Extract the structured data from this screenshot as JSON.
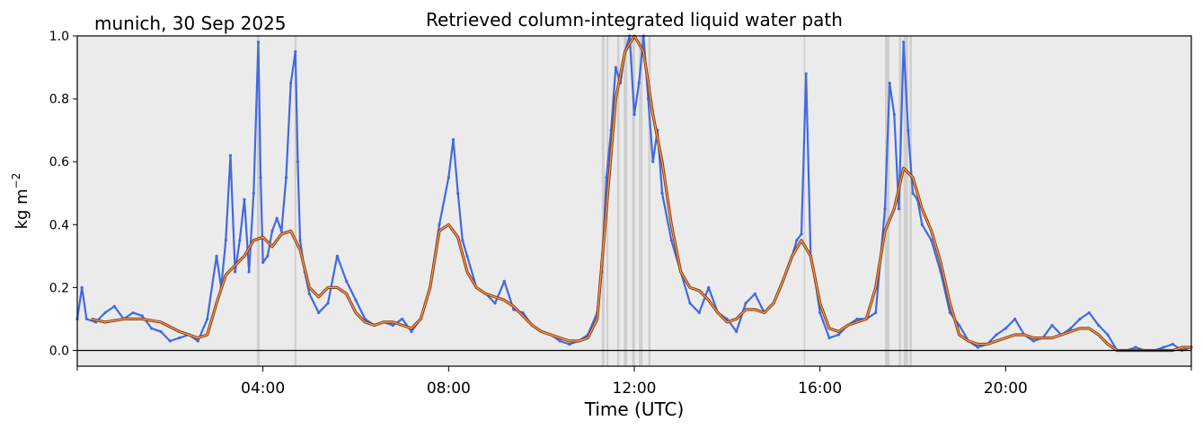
{
  "chart_data": {
    "type": "line",
    "title": "Retrieved column-integrated liquid water path",
    "subtitle": "munich, 30 Sep 2025",
    "xlabel": "Time (UTC)",
    "ylabel": "kg m",
    "ylabel_exponent": "−2",
    "xlim": [
      0,
      24
    ],
    "ylim": [
      -0.05,
      1.0
    ],
    "xticks": [
      4,
      8,
      12,
      16,
      20
    ],
    "xtick_labels": [
      "04:00",
      "08:00",
      "12:00",
      "16:00",
      "20:00"
    ],
    "yticks": [
      0.0,
      0.2,
      0.4,
      0.6,
      0.8,
      1.0
    ],
    "ytick_labels": [
      "0.0",
      "0.2",
      "0.4",
      "0.6",
      "0.8",
      "1.0"
    ],
    "grid": false,
    "colors": {
      "background": "#ebebeb",
      "raw": "#4169e1",
      "smoothed_outer": "#8b3a0f",
      "smoothed_inner": "#f4a460",
      "flag": "#c8c8c8",
      "zero_line": "#000000"
    },
    "flag_intervals": [
      [
        3.87,
        3.93
      ],
      [
        4.68,
        4.72
      ],
      [
        11.3,
        11.36
      ],
      [
        11.4,
        11.44
      ],
      [
        11.63,
        11.68
      ],
      [
        11.77,
        11.85
      ],
      [
        11.95,
        12.02
      ],
      [
        12.1,
        12.18
      ],
      [
        12.3,
        12.35
      ],
      [
        15.65,
        15.68
      ],
      [
        17.4,
        17.5
      ],
      [
        17.7,
        17.75
      ],
      [
        17.8,
        17.9
      ],
      [
        17.93,
        17.98
      ]
    ],
    "series": [
      {
        "kind": "raw",
        "x": [
          0.0,
          0.1,
          0.2,
          0.4,
          0.6,
          0.8,
          1.0,
          1.2,
          1.4,
          1.6,
          1.8,
          2.0,
          2.2,
          2.4,
          2.6,
          2.8,
          3.0,
          3.1,
          3.2,
          3.3,
          3.4,
          3.5,
          3.6,
          3.7,
          3.8,
          3.9,
          3.95,
          4.0,
          4.1,
          4.2,
          4.3,
          4.4,
          4.5,
          4.6,
          4.7,
          4.75,
          4.8,
          4.9,
          5.0,
          5.2,
          5.4,
          5.6,
          5.8,
          6.0,
          6.2,
          6.4,
          6.6,
          6.8,
          7.0,
          7.2,
          7.4,
          7.6,
          7.8,
          8.0,
          8.1,
          8.2,
          8.3,
          8.4,
          8.6,
          8.8,
          9.0,
          9.2,
          9.4,
          9.6,
          9.8,
          10.0,
          10.2,
          10.4,
          10.6,
          10.8,
          11.0,
          11.2,
          11.3,
          11.4,
          11.5,
          11.6,
          11.7,
          11.8,
          11.9,
          12.0,
          12.1,
          12.2,
          12.3,
          12.4,
          12.5,
          12.6,
          12.8,
          13.0,
          13.2,
          13.4,
          13.6,
          13.8,
          14.0,
          14.2,
          14.4,
          14.6,
          14.8,
          15.0,
          15.2,
          15.4,
          15.5,
          15.6,
          15.7,
          15.8,
          15.9,
          16.0,
          16.2,
          16.4,
          16.6,
          16.8,
          17.0,
          17.2,
          17.4,
          17.5,
          17.6,
          17.7,
          17.8,
          17.9,
          18.0,
          18.1,
          18.2,
          18.4,
          18.6,
          18.8,
          19.0,
          19.2,
          19.4,
          19.6,
          19.8,
          20.0,
          20.2,
          20.4,
          20.6,
          20.8,
          21.0,
          21.2,
          21.4,
          21.6,
          21.8,
          22.0,
          22.2,
          22.4,
          22.6,
          22.8,
          23.0,
          23.2,
          23.4,
          23.6,
          23.8,
          24.0
        ],
        "values": [
          0.1,
          0.2,
          0.1,
          0.09,
          0.12,
          0.14,
          0.1,
          0.12,
          0.11,
          0.07,
          0.06,
          0.03,
          0.04,
          0.05,
          0.03,
          0.1,
          0.3,
          0.2,
          0.35,
          0.62,
          0.25,
          0.35,
          0.48,
          0.25,
          0.5,
          0.98,
          0.55,
          0.28,
          0.3,
          0.38,
          0.42,
          0.38,
          0.55,
          0.85,
          0.95,
          0.6,
          0.35,
          0.25,
          0.18,
          0.12,
          0.15,
          0.3,
          0.22,
          0.16,
          0.1,
          0.08,
          0.09,
          0.08,
          0.1,
          0.06,
          0.1,
          0.2,
          0.4,
          0.55,
          0.67,
          0.5,
          0.35,
          0.3,
          0.2,
          0.18,
          0.15,
          0.22,
          0.13,
          0.12,
          0.08,
          0.06,
          0.05,
          0.03,
          0.02,
          0.03,
          0.05,
          0.12,
          0.25,
          0.55,
          0.7,
          0.9,
          0.85,
          0.95,
          1.0,
          0.75,
          0.85,
          1.0,
          0.8,
          0.6,
          0.7,
          0.5,
          0.35,
          0.25,
          0.15,
          0.12,
          0.2,
          0.12,
          0.1,
          0.06,
          0.15,
          0.18,
          0.12,
          0.15,
          0.22,
          0.3,
          0.35,
          0.37,
          0.88,
          0.3,
          0.22,
          0.12,
          0.04,
          0.05,
          0.08,
          0.1,
          0.1,
          0.12,
          0.45,
          0.85,
          0.75,
          0.45,
          0.98,
          0.7,
          0.5,
          0.48,
          0.4,
          0.35,
          0.25,
          0.12,
          0.08,
          0.03,
          0.01,
          0.02,
          0.05,
          0.07,
          0.1,
          0.05,
          0.03,
          0.04,
          0.08,
          0.05,
          0.07,
          0.1,
          0.12,
          0.08,
          0.05,
          0.0,
          0.0,
          0.01,
          0.0,
          0.0,
          0.01,
          0.02,
          0.0,
          0.01
        ]
      },
      {
        "kind": "smoothed",
        "x": [
          0.3,
          0.6,
          1.0,
          1.4,
          1.8,
          2.2,
          2.6,
          2.8,
          3.0,
          3.2,
          3.4,
          3.6,
          3.8,
          4.0,
          4.2,
          4.4,
          4.6,
          4.8,
          5.0,
          5.2,
          5.4,
          5.6,
          5.8,
          6.0,
          6.2,
          6.4,
          6.6,
          6.8,
          7.0,
          7.2,
          7.4,
          7.6,
          7.8,
          8.0,
          8.2,
          8.4,
          8.6,
          8.8,
          9.0,
          9.2,
          9.4,
          9.6,
          9.8,
          10.0,
          10.2,
          10.4,
          10.6,
          10.8,
          11.0,
          11.2,
          11.4,
          11.6,
          11.8,
          12.0,
          12.2,
          12.4,
          12.6,
          12.8,
          13.0,
          13.2,
          13.4,
          13.6,
          13.8,
          14.0,
          14.2,
          14.4,
          14.6,
          14.8,
          15.0,
          15.2,
          15.4,
          15.6,
          15.8,
          16.0,
          16.2,
          16.4,
          16.6,
          16.8,
          17.0,
          17.2,
          17.4,
          17.6,
          17.8,
          18.0,
          18.2,
          18.4,
          18.6,
          18.8,
          19.0,
          19.2,
          19.4,
          19.6,
          19.8,
          20.0,
          20.2,
          20.4,
          20.6,
          20.8,
          21.0,
          21.2,
          21.4,
          21.6,
          21.8,
          22.0,
          22.2,
          22.4,
          22.6,
          22.8,
          23.0,
          23.2,
          23.4,
          23.6,
          23.8,
          24.0
        ],
        "values": [
          0.1,
          0.09,
          0.1,
          0.1,
          0.09,
          0.06,
          0.04,
          0.05,
          0.15,
          0.24,
          0.27,
          0.3,
          0.35,
          0.36,
          0.33,
          0.37,
          0.38,
          0.32,
          0.2,
          0.17,
          0.2,
          0.2,
          0.18,
          0.12,
          0.09,
          0.08,
          0.09,
          0.09,
          0.08,
          0.07,
          0.1,
          0.2,
          0.38,
          0.4,
          0.36,
          0.25,
          0.2,
          0.18,
          0.17,
          0.16,
          0.14,
          0.11,
          0.08,
          0.06,
          0.05,
          0.04,
          0.03,
          0.03,
          0.04,
          0.1,
          0.45,
          0.8,
          0.95,
          1.0,
          0.95,
          0.75,
          0.6,
          0.4,
          0.25,
          0.2,
          0.19,
          0.16,
          0.12,
          0.09,
          0.1,
          0.13,
          0.13,
          0.12,
          0.15,
          0.22,
          0.3,
          0.35,
          0.3,
          0.15,
          0.07,
          0.06,
          0.08,
          0.09,
          0.1,
          0.2,
          0.38,
          0.45,
          0.58,
          0.55,
          0.45,
          0.38,
          0.28,
          0.15,
          0.05,
          0.03,
          0.02,
          0.02,
          0.03,
          0.04,
          0.05,
          0.05,
          0.04,
          0.04,
          0.04,
          0.05,
          0.06,
          0.07,
          0.07,
          0.05,
          0.02,
          0.0,
          0.0,
          0.0,
          0.0,
          0.0,
          0.0,
          0.0,
          0.01,
          0.01
        ]
      }
    ]
  }
}
